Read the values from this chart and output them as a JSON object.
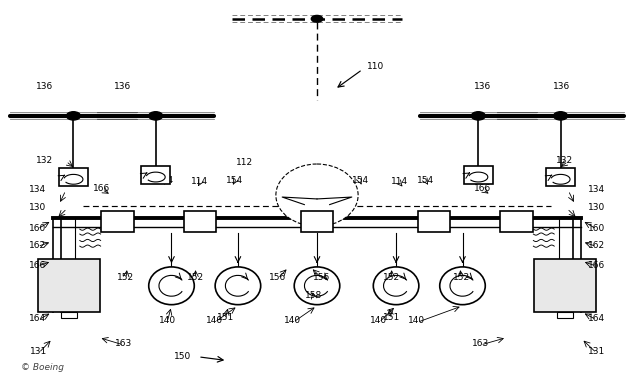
{
  "background_color": "#ffffff",
  "fig_width": 6.34,
  "fig_height": 3.79,
  "dpi": 100,
  "boeing_watermark": "© Boeing"
}
